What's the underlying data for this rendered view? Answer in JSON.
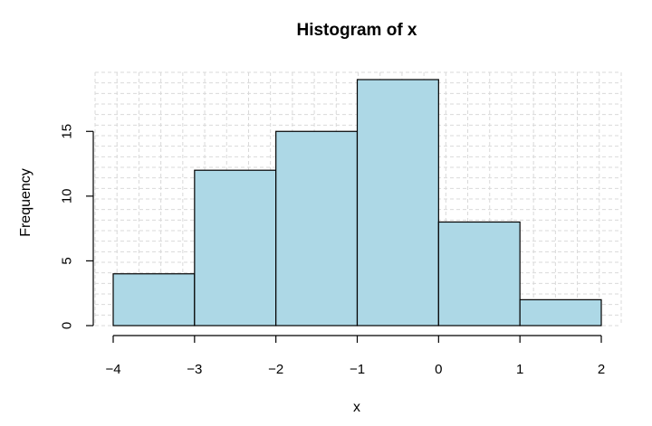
{
  "chart_data": {
    "type": "bar",
    "subtype": "histogram",
    "title": "Histogram of x",
    "xlabel": "x",
    "ylabel": "Frequency",
    "bins": [
      {
        "from": -4,
        "to": -3,
        "count": 4
      },
      {
        "from": -3,
        "to": -2,
        "count": 12
      },
      {
        "from": -2,
        "to": -1,
        "count": 15
      },
      {
        "from": -1,
        "to": 0,
        "count": 19
      },
      {
        "from": 0,
        "to": 1,
        "count": 8
      },
      {
        "from": 1,
        "to": 2,
        "count": 2
      }
    ],
    "x_ticks": [
      -4,
      -3,
      -2,
      -1,
      0,
      1,
      2
    ],
    "x_tick_labels": [
      "−4",
      "−3",
      "−2",
      "−1",
      "0",
      "1",
      "2"
    ],
    "y_ticks": [
      0,
      5,
      10,
      15
    ],
    "xlim": [
      -4,
      2
    ],
    "ylim": [
      0,
      19
    ],
    "grid": true,
    "bar_color": "#add8e6",
    "edge_color": "#000000"
  }
}
